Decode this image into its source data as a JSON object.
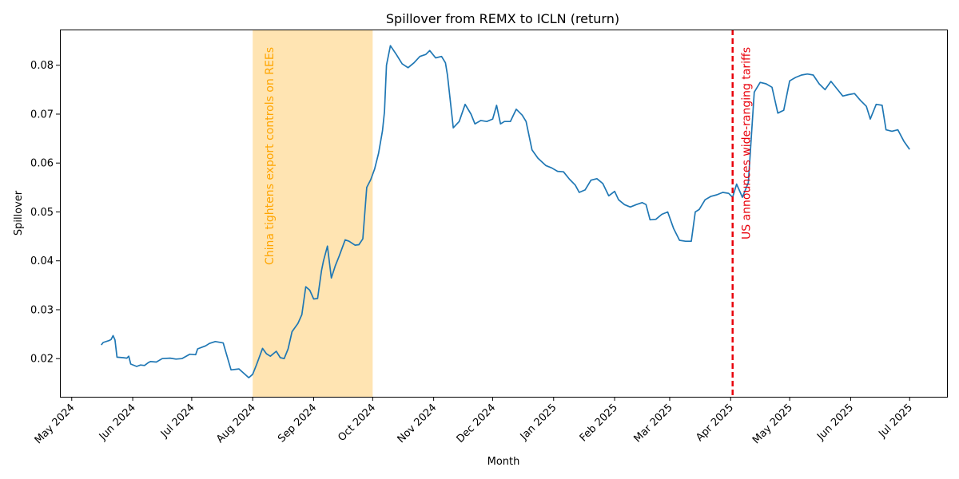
{
  "chart_data": {
    "type": "line",
    "title": "Spillover from REMX to ICLN (return)",
    "xlabel": "Month",
    "ylabel": "Spillover",
    "xlim": [
      "2024-04-25",
      "2025-07-20"
    ],
    "ylim": [
      0.0122,
      0.0873
    ],
    "grid": false,
    "x_ticks": [
      "2024-05-01",
      "2024-06-01",
      "2024-07-01",
      "2024-08-01",
      "2024-09-01",
      "2024-10-01",
      "2024-11-01",
      "2024-12-01",
      "2025-01-01",
      "2025-02-01",
      "2025-03-01",
      "2025-04-01",
      "2025-05-01",
      "2025-06-01",
      "2025-07-01"
    ],
    "x_tick_labels": [
      "May 2024",
      "Jun 2024",
      "Jul 2024",
      "Aug 2024",
      "Sep 2024",
      "Oct 2024",
      "Nov 2024",
      "Dec 2024",
      "Jan 2025",
      "Feb 2025",
      "Mar 2025",
      "Apr 2025",
      "May 2025",
      "Jun 2025",
      "Jul 2025"
    ],
    "y_ticks": [
      0.02,
      0.03,
      0.04,
      0.05,
      0.06,
      0.07,
      0.08
    ],
    "y_tick_labels": [
      "0.02",
      "0.03",
      "0.04",
      "0.05",
      "0.06",
      "0.07",
      "0.08"
    ],
    "series_color": "#1f77b4",
    "x": [
      "2024-05-16",
      "2024-05-17",
      "2024-05-20",
      "2024-05-21",
      "2024-05-22",
      "2024-05-23",
      "2024-05-24",
      "2024-05-27",
      "2024-05-29",
      "2024-05-30",
      "2024-05-31",
      "2024-06-03",
      "2024-06-05",
      "2024-06-07",
      "2024-06-09",
      "2024-06-10",
      "2024-06-13",
      "2024-06-16",
      "2024-06-20",
      "2024-06-23",
      "2024-06-26",
      "2024-06-30",
      "2024-07-03",
      "2024-07-04",
      "2024-07-08",
      "2024-07-10",
      "2024-07-13",
      "2024-07-17",
      "2024-07-21",
      "2024-07-25",
      "2024-07-28",
      "2024-07-30",
      "2024-08-01",
      "2024-08-03",
      "2024-08-06",
      "2024-08-08",
      "2024-08-10",
      "2024-08-13",
      "2024-08-15",
      "2024-08-17",
      "2024-08-19",
      "2024-08-21",
      "2024-08-24",
      "2024-08-26",
      "2024-08-28",
      "2024-08-30",
      "2024-09-01",
      "2024-09-03",
      "2024-09-05",
      "2024-09-06",
      "2024-09-08",
      "2024-09-10",
      "2024-09-12",
      "2024-09-14",
      "2024-09-17",
      "2024-09-19",
      "2024-09-22",
      "2024-09-24",
      "2024-09-26",
      "2024-09-28",
      "2024-09-30",
      "2024-10-02",
      "2024-10-04",
      "2024-10-06",
      "2024-10-07",
      "2024-10-08",
      "2024-10-10",
      "2024-10-13",
      "2024-10-16",
      "2024-10-19",
      "2024-10-22",
      "2024-10-25",
      "2024-10-28",
      "2024-10-30",
      "2024-11-02",
      "2024-11-05",
      "2024-11-07",
      "2024-11-08",
      "2024-11-11",
      "2024-11-14",
      "2024-11-17",
      "2024-11-20",
      "2024-11-22",
      "2024-11-25",
      "2024-11-28",
      "2024-12-01",
      "2024-12-03",
      "2024-12-05",
      "2024-12-07",
      "2024-12-10",
      "2024-12-13",
      "2024-12-16",
      "2024-12-18",
      "2024-12-21",
      "2024-12-24",
      "2024-12-28",
      "2024-12-31",
      "2025-01-03",
      "2025-01-06",
      "2025-01-09",
      "2025-01-12",
      "2025-01-14",
      "2025-01-17",
      "2025-01-20",
      "2025-01-23",
      "2025-01-26",
      "2025-01-29",
      "2025-02-01",
      "2025-02-03",
      "2025-02-06",
      "2025-02-09",
      "2025-02-12",
      "2025-02-15",
      "2025-02-17",
      "2025-02-19",
      "2025-02-22",
      "2025-02-25",
      "2025-02-28",
      "2025-03-03",
      "2025-03-06",
      "2025-03-09",
      "2025-03-12",
      "2025-03-14",
      "2025-03-16",
      "2025-03-19",
      "2025-03-22",
      "2025-03-25",
      "2025-03-28",
      "2025-03-31",
      "2025-04-02",
      "2025-04-04",
      "2025-04-07",
      "2025-04-10",
      "2025-04-13",
      "2025-04-16",
      "2025-04-19",
      "2025-04-22",
      "2025-04-25",
      "2025-04-28",
      "2025-05-01",
      "2025-05-04",
      "2025-05-07",
      "2025-05-10",
      "2025-05-13",
      "2025-05-16",
      "2025-05-19",
      "2025-05-22",
      "2025-05-25",
      "2025-05-28",
      "2025-05-31",
      "2025-06-03",
      "2025-06-06",
      "2025-06-09",
      "2025-06-11",
      "2025-06-14",
      "2025-06-17",
      "2025-06-19",
      "2025-06-22",
      "2025-06-25",
      "2025-06-28",
      "2025-07-01"
    ],
    "values": [
      0.0228,
      0.0233,
      0.0237,
      0.0239,
      0.0247,
      0.0238,
      0.0203,
      0.0202,
      0.0201,
      0.0205,
      0.0189,
      0.0184,
      0.0187,
      0.0186,
      0.0192,
      0.0194,
      0.0193,
      0.02,
      0.0201,
      0.0199,
      0.02,
      0.0209,
      0.0208,
      0.022,
      0.0226,
      0.0231,
      0.0235,
      0.0232,
      0.0177,
      0.0179,
      0.0168,
      0.0161,
      0.0168,
      0.0188,
      0.0221,
      0.021,
      0.0205,
      0.0215,
      0.0202,
      0.02,
      0.022,
      0.0255,
      0.0272,
      0.029,
      0.0347,
      0.034,
      0.0322,
      0.0323,
      0.038,
      0.04,
      0.043,
      0.0365,
      0.039,
      0.041,
      0.0443,
      0.044,
      0.0432,
      0.0433,
      0.0445,
      0.055,
      0.0566,
      0.0588,
      0.062,
      0.0666,
      0.0705,
      0.08,
      0.084,
      0.0822,
      0.0803,
      0.0795,
      0.0805,
      0.0818,
      0.0822,
      0.083,
      0.0815,
      0.0818,
      0.0805,
      0.078,
      0.0672,
      0.0685,
      0.072,
      0.07,
      0.068,
      0.0687,
      0.0685,
      0.069,
      0.0718,
      0.068,
      0.0685,
      0.0685,
      0.071,
      0.0698,
      0.0685,
      0.0627,
      0.061,
      0.0595,
      0.059,
      0.0583,
      0.0582,
      0.0567,
      0.0555,
      0.054,
      0.0545,
      0.0565,
      0.0568,
      0.0558,
      0.0533,
      0.0542,
      0.0525,
      0.0515,
      0.051,
      0.0515,
      0.0519,
      0.0515,
      0.0484,
      0.0485,
      0.0495,
      0.05,
      0.0466,
      0.0442,
      0.044,
      0.044,
      0.05,
      0.0505,
      0.0525,
      0.0532,
      0.0535,
      0.054,
      0.0538,
      0.053,
      0.0557,
      0.053,
      0.056,
      0.0745,
      0.0765,
      0.0762,
      0.0755,
      0.0702,
      0.0708,
      0.0768,
      0.0775,
      0.078,
      0.0782,
      0.078,
      0.0762,
      0.075,
      0.0767,
      0.0752,
      0.0737,
      0.074,
      0.0742,
      0.0728,
      0.0716,
      0.069,
      0.072,
      0.0718,
      0.0668,
      0.0665,
      0.0668,
      0.0645,
      0.0628
    ],
    "annotations": [
      {
        "kind": "span",
        "from": "2024-08-01",
        "to": "2024-10-01",
        "text": "China tightens export controls on REEs",
        "color": "#ffa500"
      },
      {
        "kind": "vline",
        "at": "2025-04-02",
        "text": "US announces wide-ranging tariffs",
        "color": "#e8000b"
      }
    ]
  }
}
